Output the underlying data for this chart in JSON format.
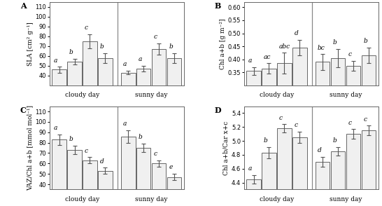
{
  "panel_A": {
    "label": "A",
    "ylabel": "SLA [cm² g⁻¹]",
    "ylim": [
      30,
      115
    ],
    "yticks": [
      40,
      50,
      60,
      70,
      80,
      90,
      100,
      110
    ],
    "cloudy": {
      "values": [
        46,
        54,
        75,
        58
      ],
      "errors": [
        3,
        3,
        7,
        5
      ],
      "letters": [
        "a",
        "b",
        "c",
        "b"
      ]
    },
    "sunny": {
      "values": [
        43,
        47,
        67,
        58
      ],
      "errors": [
        2,
        3,
        6,
        5
      ],
      "letters": [
        "a",
        "a",
        "c",
        "b"
      ]
    },
    "xlabel_cloudy": "cloudy day",
    "xlabel_sunny": "sunny day"
  },
  "panel_B": {
    "label": "B",
    "ylabel": "Chl a+b [g m⁻²]",
    "ylim": [
      0.3,
      0.62
    ],
    "yticks": [
      0.35,
      0.4,
      0.45,
      0.5,
      0.55,
      0.6
    ],
    "cloudy": {
      "values": [
        0.355,
        0.365,
        0.385,
        0.445
      ],
      "errors": [
        0.015,
        0.02,
        0.04,
        0.03
      ],
      "letters": [
        "a",
        "ac",
        "abc",
        "d"
      ]
    },
    "sunny": {
      "values": [
        0.39,
        0.405,
        0.375,
        0.415
      ],
      "errors": [
        0.03,
        0.035,
        0.02,
        0.03
      ],
      "letters": [
        "bc",
        "b",
        "c",
        "b"
      ]
    },
    "xlabel_cloudy": "cloudy day",
    "xlabel_sunny": "sunny day"
  },
  "panel_C": {
    "label": "C",
    "ylabel": "VAZ/Chl a+b [mmol mol⁻¹]",
    "ylim": [
      35,
      115
    ],
    "yticks": [
      40,
      50,
      60,
      70,
      80,
      90,
      100,
      110
    ],
    "cloudy": {
      "values": [
        83,
        73,
        63,
        53
      ],
      "errors": [
        5,
        4,
        3,
        3
      ],
      "letters": [
        "a",
        "b",
        "c",
        "d"
      ]
    },
    "sunny": {
      "values": [
        86,
        75,
        60,
        47
      ],
      "errors": [
        6,
        4,
        3,
        3
      ],
      "letters": [
        "a",
        "b",
        "c",
        "e"
      ]
    },
    "xlabel_cloudy": "cloudy day",
    "xlabel_sunny": "sunny day"
  },
  "panel_D": {
    "label": "D",
    "ylabel": "Chl a+b/Car x+c",
    "ylim": [
      4.3,
      5.5
    ],
    "yticks": [
      4.4,
      4.6,
      4.8,
      5.0,
      5.2,
      5.4
    ],
    "cloudy": {
      "values": [
        4.45,
        4.83,
        5.18,
        5.05
      ],
      "errors": [
        0.06,
        0.08,
        0.06,
        0.08
      ],
      "letters": [
        "a",
        "b",
        "c",
        "c"
      ]
    },
    "sunny": {
      "values": [
        4.7,
        4.85,
        5.1,
        5.15
      ],
      "errors": [
        0.07,
        0.06,
        0.07,
        0.07
      ],
      "letters": [
        "d",
        "b",
        "c",
        "c"
      ]
    },
    "xlabel_cloudy": "cloudy day",
    "xlabel_sunny": "sunny day"
  },
  "bar_color": "#f0f0f0",
  "bar_edgecolor": "#666666",
  "bar_width": 0.75,
  "letter_fontsize": 6.5,
  "axis_fontsize": 6.5,
  "tick_fontsize": 6,
  "label_fontsize": 8
}
